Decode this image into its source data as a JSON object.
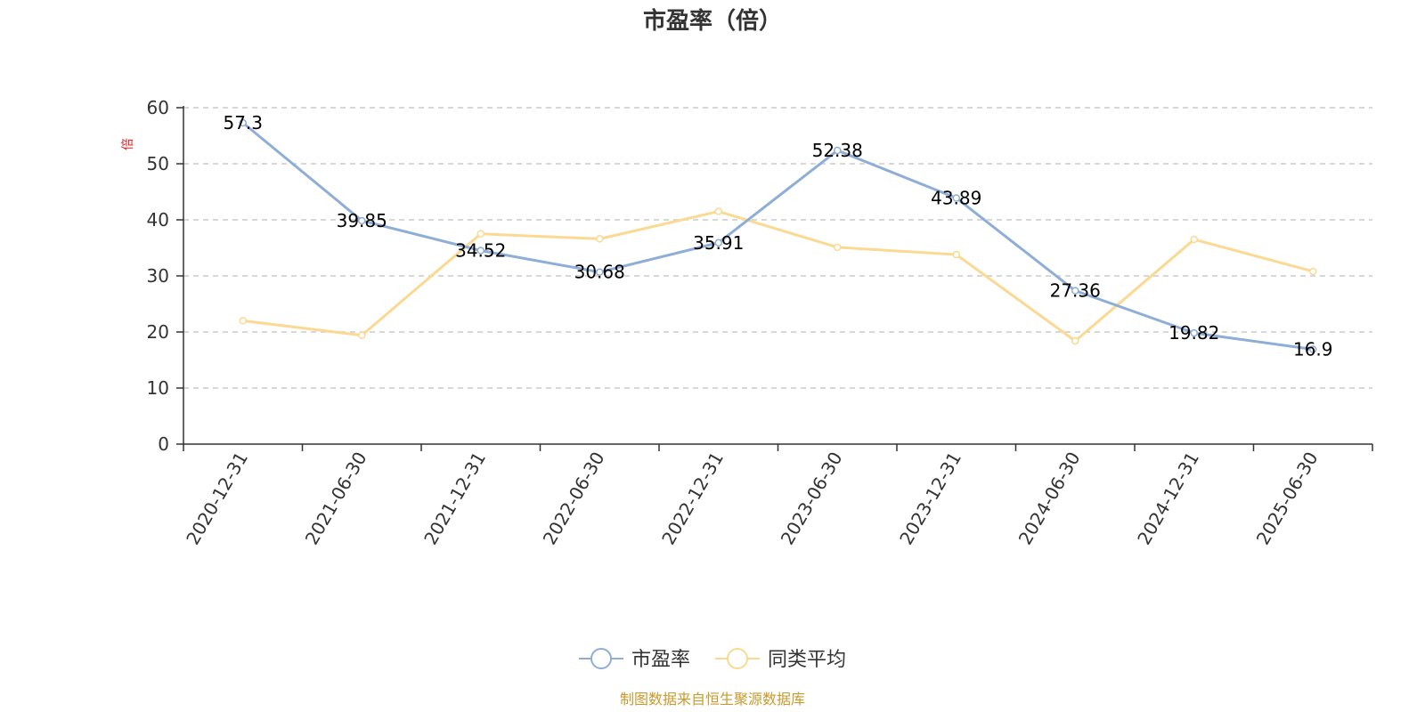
{
  "chart_data": {
    "type": "line",
    "title": "市盈率（倍）",
    "y_unit_label": "倍",
    "categories": [
      "2020-12-31",
      "2021-06-30",
      "2021-12-31",
      "2022-06-30",
      "2022-12-31",
      "2023-06-30",
      "2023-12-31",
      "2024-06-30",
      "2024-12-31",
      "2025-06-30"
    ],
    "series": [
      {
        "name": "市盈率",
        "color": "#8eaed8",
        "values": [
          57.3,
          39.85,
          34.52,
          30.68,
          35.91,
          52.38,
          43.89,
          27.36,
          19.82,
          16.9
        ],
        "labels": [
          "57.3",
          "39.85",
          "34.52",
          "30.68",
          "35.91",
          "52.38",
          "43.89",
          "27.36",
          "19.82",
          "16.9"
        ],
        "show_labels": true
      },
      {
        "name": "同类平均",
        "color": "#fbd993",
        "values": [
          22,
          19.4,
          37.5,
          36.6,
          41.5,
          35.1,
          33.8,
          18.4,
          36.5,
          30.8
        ],
        "show_labels": false
      }
    ],
    "ylim": [
      0,
      60
    ],
    "yticks": [
      0,
      10,
      20,
      30,
      40,
      50,
      60
    ],
    "grid": true,
    "legend_position": "bottom"
  },
  "footer": {
    "source": "制图数据来自恒生聚源数据库"
  }
}
